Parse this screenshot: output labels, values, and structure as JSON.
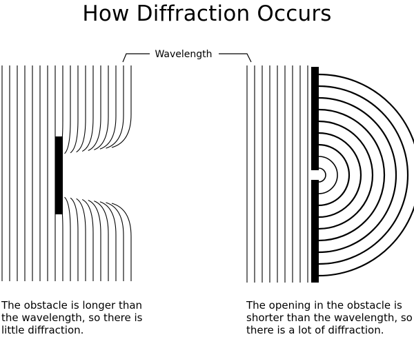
{
  "title": "How Diffraction Occurs",
  "wavelength_label": "Wavelength",
  "left_caption": [
    "The obstacle is longer than",
    "the wavelength, so there is",
    "little diffraction."
  ],
  "right_caption": [
    "The opening in the obstacle is",
    "shorter than the wavelength, so",
    "there is a lot of diffraction."
  ],
  "colors": {
    "ink": "#000000",
    "background": "#ffffff"
  }
}
